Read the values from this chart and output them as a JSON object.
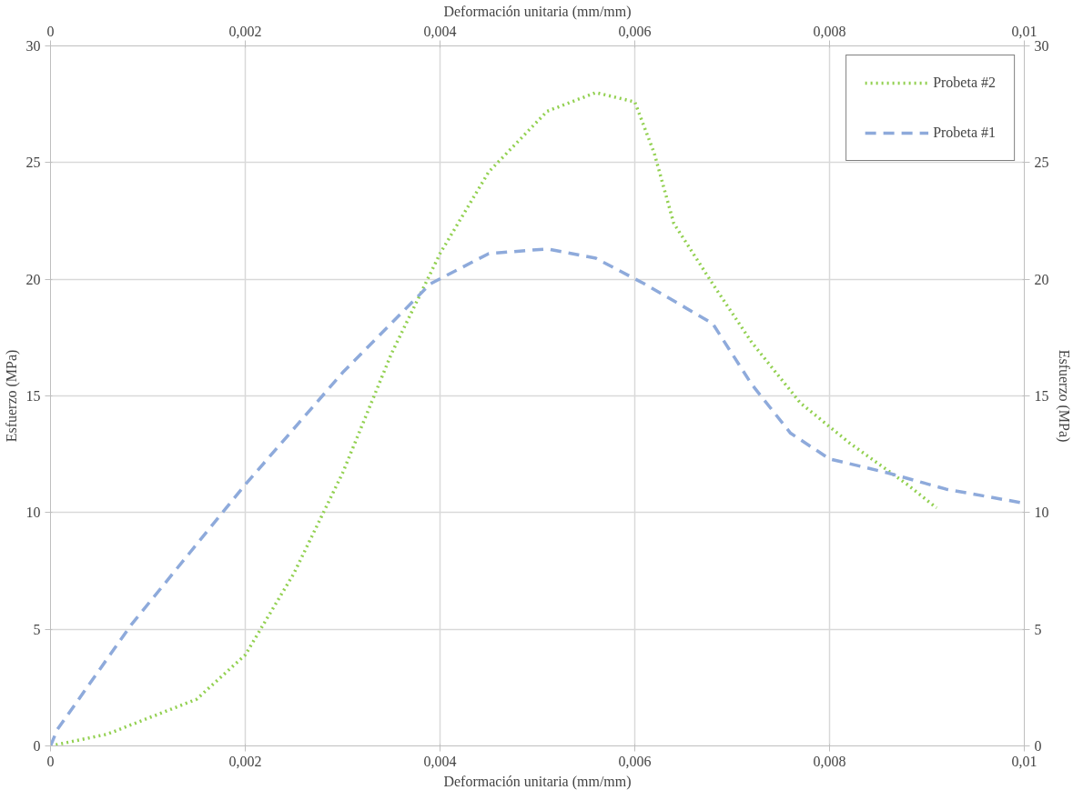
{
  "chart_data": {
    "type": "line",
    "xlabel": "Deformación unitaria (mm/mm)",
    "x2label": "Deformación unitaria (mm/mm)",
    "ylabel": "Esfuerzo (MPa)",
    "y2label": "Esfuerzo (MPa)",
    "xlim": [
      0,
      0.01
    ],
    "x2lim": [
      0,
      0.01
    ],
    "ylim": [
      0,
      30
    ],
    "y2lim": [
      0,
      30
    ],
    "xticks": [
      0,
      {
        "value": 0.002,
        "label": "0,002"
      },
      {
        "value": 0.004,
        "label": "0,004"
      },
      {
        "value": 0.006,
        "label": "0,006"
      },
      {
        "value": 0.008,
        "label": "0,008"
      },
      {
        "value": 0.01,
        "label": "0,01"
      }
    ],
    "x2ticks": [
      0,
      {
        "value": 0.002,
        "label": "0,002"
      },
      {
        "value": 0.004,
        "label": "0,004"
      },
      {
        "value": 0.006,
        "label": "0,006"
      },
      {
        "value": 0.008,
        "label": "0,008"
      },
      {
        "value": 0.01,
        "label": "0,01"
      }
    ],
    "yticks": [
      0,
      5,
      10,
      15,
      20,
      25,
      30
    ],
    "y2ticks": [
      0,
      5,
      10,
      15,
      20,
      25,
      30
    ],
    "grid": true,
    "legend": "top right",
    "series": [
      {
        "name": "Probeta #2",
        "color": "#92d050",
        "line_style": "dotted",
        "x": [
          0,
          0.00058,
          0.0015,
          0.002,
          0.0025,
          0.003,
          0.0035,
          0.004,
          0.0045,
          0.0051,
          0.0056,
          0.006,
          0.0062,
          0.0064,
          0.0068,
          0.0072,
          0.0077,
          0.0082,
          0.0088,
          0.0091
        ],
        "values": [
          0,
          0.5,
          2.0,
          3.9,
          7.4,
          11.7,
          16.8,
          21.1,
          24.6,
          27.2,
          28.0,
          27.6,
          25.4,
          22.4,
          19.8,
          17.3,
          14.7,
          13.0,
          11.2,
          10.2
        ]
      },
      {
        "name": "Probeta #1",
        "color": "#8eaadb",
        "line_style": "dashed",
        "x": [
          0,
          7e-05,
          0.00083,
          0.002,
          0.003,
          0.0039,
          0.0045,
          0.0051,
          0.0056,
          0.0061,
          0.0068,
          0.0072,
          0.0076,
          0.008,
          0.0086,
          0.0092,
          0.01
        ],
        "values": [
          0,
          0.7,
          5.2,
          11.2,
          16.0,
          19.8,
          21.1,
          21.3,
          20.9,
          19.8,
          18.1,
          15.5,
          13.4,
          12.3,
          11.7,
          11.0,
          10.4
        ]
      }
    ]
  }
}
